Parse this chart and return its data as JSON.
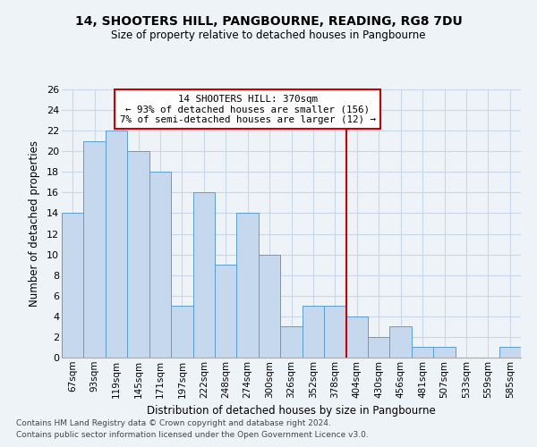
{
  "title": "14, SHOOTERS HILL, PANGBOURNE, READING, RG8 7DU",
  "subtitle": "Size of property relative to detached houses in Pangbourne",
  "xlabel": "Distribution of detached houses by size in Pangbourne",
  "ylabel": "Number of detached properties",
  "categories": [
    "67sqm",
    "93sqm",
    "119sqm",
    "145sqm",
    "171sqm",
    "197sqm",
    "222sqm",
    "248sqm",
    "274sqm",
    "300sqm",
    "326sqm",
    "352sqm",
    "378sqm",
    "404sqm",
    "430sqm",
    "456sqm",
    "481sqm",
    "507sqm",
    "533sqm",
    "559sqm",
    "585sqm"
  ],
  "values": [
    14,
    21,
    22,
    20,
    18,
    5,
    16,
    9,
    14,
    10,
    3,
    5,
    5,
    4,
    2,
    3,
    1,
    1,
    0,
    0,
    1
  ],
  "bar_color": "#c5d8ed",
  "bar_edge_color": "#5a9fd4",
  "property_line_x": 12.5,
  "property_line_color": "#cc0000",
  "annotation_text": "14 SHOOTERS HILL: 370sqm\n← 93% of detached houses are smaller (156)\n7% of semi-detached houses are larger (12) →",
  "annotation_box_color": "#cc0000",
  "ylim": [
    0,
    26
  ],
  "yticks": [
    0,
    2,
    4,
    6,
    8,
    10,
    12,
    14,
    16,
    18,
    20,
    22,
    24,
    26
  ],
  "grid_color": "#c8d8e8",
  "background_color": "#eef3f8",
  "footnote1": "Contains HM Land Registry data © Crown copyright and database right 2024.",
  "footnote2": "Contains public sector information licensed under the Open Government Licence v3.0."
}
